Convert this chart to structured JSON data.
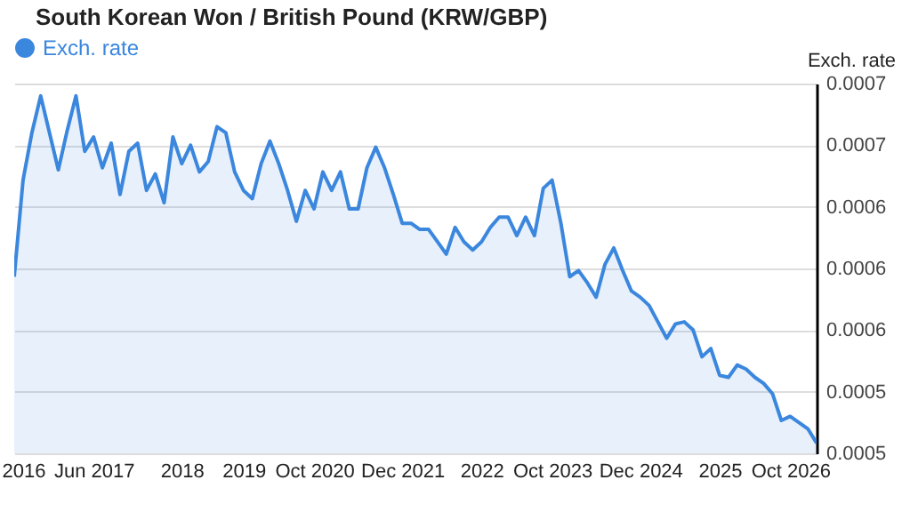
{
  "chart_data": {
    "type": "area",
    "title": "South Korean Won / British Pound (KRW/GBP)",
    "ylabel": "Exch. rate",
    "legend": "top left",
    "grid": "y",
    "categories": [
      null,
      "2016",
      null,
      null,
      null,
      null,
      null,
      null,
      null,
      "Jun 2017",
      null,
      null,
      null,
      null,
      null,
      null,
      null,
      null,
      null,
      "2018",
      null,
      null,
      null,
      null,
      null,
      null,
      "2019",
      null,
      null,
      null,
      null,
      null,
      null,
      null,
      "Oct 2020",
      null,
      null,
      null,
      null,
      null,
      null,
      null,
      null,
      null,
      "Dec 2021",
      null,
      null,
      null,
      null,
      null,
      null,
      null,
      null,
      "2022",
      null,
      null,
      null,
      null,
      null,
      null,
      null,
      "Oct 2023",
      null,
      null,
      null,
      null,
      null,
      null,
      null,
      null,
      null,
      "Dec 2024",
      null,
      null,
      null,
      null,
      null,
      null,
      null,
      null,
      "2025",
      null,
      null,
      null,
      null,
      null,
      null,
      null,
      "Oct 2026",
      null,
      null,
      null
    ],
    "series": [
      {
        "name": "Exch. rate",
        "color": "#3b87de",
        "values": [
          0.000586,
          0.000633,
          0.000656,
          0.000674,
          0.000656,
          0.000638,
          0.000657,
          0.000674,
          0.000647,
          0.000654,
          0.000639,
          0.000651,
          0.000626,
          0.000647,
          0.000651,
          0.000628,
          0.000636,
          0.000622,
          0.000654,
          0.000641,
          0.00065,
          0.000637,
          0.000642,
          0.000659,
          0.000656,
          0.000637,
          0.000628,
          0.000624,
          0.000641,
          0.000652,
          0.000641,
          0.000628,
          0.000613,
          0.000628,
          0.000619,
          0.000637,
          0.000628,
          0.000637,
          0.000619,
          0.000619,
          0.000639,
          0.000649,
          0.000639,
          0.000626,
          0.000612,
          0.000612,
          0.000609,
          0.000609,
          0.000603,
          0.000597,
          0.00061,
          0.000603,
          0.000599,
          0.000603,
          0.00061,
          0.000615,
          0.000615,
          0.000606,
          0.000615,
          0.000606,
          0.000629,
          0.000633,
          0.000612,
          0.000586,
          0.000589,
          0.000583,
          0.000576,
          0.000592,
          0.0006,
          0.000589,
          0.000579,
          0.000576,
          0.000572,
          0.000564,
          0.000556,
          0.000563,
          0.000564,
          0.00056,
          0.000547,
          0.000551,
          0.000538,
          0.000537,
          0.000543,
          0.000541,
          0.000537,
          0.000534,
          0.000529,
          0.000516,
          0.000518,
          0.000515,
          0.000512,
          0.000505
        ]
      }
    ],
    "ylim": [
      0.0005,
      0.00068
    ],
    "yticks": [
      {
        "value": 0.0005,
        "label": "0.0005"
      },
      {
        "value": 0.00053,
        "label": "0.0005"
      },
      {
        "value": 0.00056,
        "label": "0.0006"
      },
      {
        "value": 0.00059,
        "label": "0.0006"
      },
      {
        "value": 0.00062,
        "label": "0.0006"
      },
      {
        "value": 0.00065,
        "label": "0.0007"
      },
      {
        "value": 0.00068,
        "label": "0.0007"
      }
    ]
  }
}
